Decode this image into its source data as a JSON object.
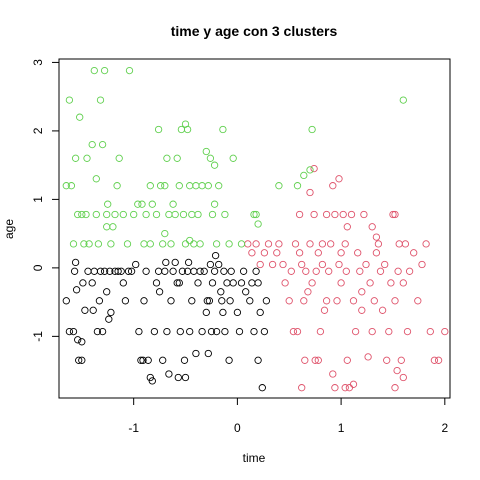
{
  "chart_data": {
    "type": "scatter",
    "title": "time  y  age con  3  clusters",
    "xlabel": "time",
    "ylabel": "age",
    "xlim": [
      -1.72,
      2.05
    ],
    "ylim": [
      -1.9,
      3.05
    ],
    "xticks": [
      -1,
      0,
      1,
      2
    ],
    "yticks": [
      -1,
      0,
      1,
      2,
      3
    ],
    "grid": false,
    "legend": "none",
    "series": [
      {
        "color": "#000000",
        "points": [
          [
            -1.65,
            -0.48
          ],
          [
            -1.62,
            -0.93
          ],
          [
            -1.58,
            -0.93
          ],
          [
            -1.57,
            -0.05
          ],
          [
            -1.56,
            0.08
          ],
          [
            -1.55,
            -0.32
          ],
          [
            -1.54,
            -1.05
          ],
          [
            -1.53,
            -1.35
          ],
          [
            -1.5,
            -1.35
          ],
          [
            -1.5,
            -1.08
          ],
          [
            -1.47,
            -0.62
          ],
          [
            -1.44,
            -0.05
          ],
          [
            -1.4,
            -0.22
          ],
          [
            -1.38,
            -0.05
          ],
          [
            -1.35,
            -0.93
          ],
          [
            -1.33,
            -0.48
          ],
          [
            -1.32,
            -0.05
          ],
          [
            -1.3,
            -0.93
          ],
          [
            -1.28,
            -0.05
          ],
          [
            -1.26,
            -0.35
          ],
          [
            -1.24,
            -0.75
          ],
          [
            -1.22,
            -0.65
          ],
          [
            -1.18,
            -0.05
          ],
          [
            -1.15,
            -0.05
          ],
          [
            -1.12,
            -0.05
          ],
          [
            -1.1,
            -0.22
          ],
          [
            -1.08,
            -0.48
          ],
          [
            -1.05,
            -0.05
          ],
          [
            -1.02,
            -0.05
          ],
          [
            -0.98,
            0.05
          ],
          [
            -0.95,
            -0.93
          ],
          [
            -0.93,
            -1.35
          ],
          [
            -0.91,
            -1.35
          ],
          [
            -0.9,
            -0.48
          ],
          [
            -0.88,
            -0.05
          ],
          [
            -0.86,
            -1.35
          ],
          [
            -0.84,
            -1.6
          ],
          [
            -0.82,
            -1.65
          ],
          [
            -0.8,
            -0.93
          ],
          [
            -0.78,
            -0.22
          ],
          [
            -0.76,
            -0.05
          ],
          [
            -0.75,
            -0.35
          ],
          [
            -0.72,
            -1.35
          ],
          [
            -0.7,
            -0.05
          ],
          [
            -0.68,
            -0.93
          ],
          [
            -0.66,
            -1.55
          ],
          [
            -0.64,
            -0.48
          ],
          [
            -0.62,
            -0.05
          ],
          [
            -0.6,
            0.08
          ],
          [
            -0.58,
            -0.22
          ],
          [
            -0.57,
            -1.6
          ],
          [
            -0.55,
            -0.93
          ],
          [
            -0.53,
            -0.05
          ],
          [
            -0.51,
            -1.35
          ],
          [
            -0.5,
            -1.6
          ],
          [
            -0.48,
            -0.05
          ],
          [
            -0.46,
            -0.93
          ],
          [
            -0.44,
            -0.48
          ],
          [
            -0.42,
            -0.05
          ],
          [
            -0.4,
            -1.25
          ],
          [
            -0.38,
            -0.22
          ],
          [
            -0.36,
            -0.05
          ],
          [
            -0.34,
            -0.93
          ],
          [
            -0.32,
            -0.05
          ],
          [
            -0.3,
            -0.65
          ],
          [
            -0.28,
            -1.25
          ],
          [
            -0.27,
            -0.48
          ],
          [
            -0.26,
            0.05
          ],
          [
            -0.24,
            -0.22
          ],
          [
            -0.22,
            -0.05
          ],
          [
            -0.2,
            -0.93
          ],
          [
            -0.18,
            0.05
          ],
          [
            -0.16,
            -0.35
          ],
          [
            -0.15,
            -0.48
          ],
          [
            -0.13,
            -0.05
          ],
          [
            -0.12,
            -0.93
          ],
          [
            -0.1,
            -0.22
          ],
          [
            -0.08,
            -1.35
          ],
          [
            -0.06,
            -0.05
          ],
          [
            -0.04,
            -0.22
          ],
          [
            0.0,
            -0.65
          ],
          [
            0.02,
            -0.93
          ],
          [
            0.04,
            -0.22
          ],
          [
            0.06,
            -0.05
          ],
          [
            0.08,
            -0.35
          ],
          [
            0.12,
            -0.48
          ],
          [
            0.16,
            -0.93
          ],
          [
            0.18,
            -0.05
          ],
          [
            0.2,
            -1.35
          ],
          [
            0.2,
            -0.22
          ],
          [
            0.22,
            -0.65
          ],
          [
            0.24,
            -1.75
          ],
          [
            0.26,
            -0.93
          ],
          [
            0.28,
            -0.48
          ],
          [
            -1.49,
            -0.22
          ],
          [
            -1.39,
            -0.62
          ],
          [
            -1.23,
            -0.05
          ],
          [
            -0.69,
            0.08
          ],
          [
            -0.56,
            -0.22
          ],
          [
            -0.47,
            0.08
          ],
          [
            -0.29,
            -0.48
          ],
          [
            -0.25,
            -0.93
          ],
          [
            -0.21,
            0.18
          ],
          [
            -0.14,
            -0.65
          ],
          [
            -0.07,
            -0.48
          ],
          [
            0.14,
            -0.22
          ]
        ]
      },
      {
        "color": "#DF536B",
        "points": [
          [
            0.1,
            0.35
          ],
          [
            0.14,
            0.22
          ],
          [
            0.18,
            0.35
          ],
          [
            0.22,
            0.05
          ],
          [
            0.26,
            0.22
          ],
          [
            0.3,
            0.35
          ],
          [
            0.34,
            0.05
          ],
          [
            0.38,
            0.22
          ],
          [
            0.4,
            0.35
          ],
          [
            0.44,
            0.05
          ],
          [
            0.46,
            -0.22
          ],
          [
            0.5,
            -0.48
          ],
          [
            0.52,
            -0.05
          ],
          [
            0.54,
            -0.93
          ],
          [
            0.56,
            0.35
          ],
          [
            0.58,
            -0.93
          ],
          [
            0.6,
            0.22
          ],
          [
            0.62,
            0.05
          ],
          [
            0.64,
            -0.48
          ],
          [
            0.65,
            -1.35
          ],
          [
            0.66,
            -0.05
          ],
          [
            0.68,
            -0.35
          ],
          [
            0.7,
            0.35
          ],
          [
            0.72,
            -0.22
          ],
          [
            0.74,
            0.78
          ],
          [
            0.75,
            -1.35
          ],
          [
            0.76,
            -0.05
          ],
          [
            0.78,
            0.22
          ],
          [
            0.8,
            -0.93
          ],
          [
            0.82,
            0.35
          ],
          [
            0.84,
            -0.62
          ],
          [
            0.86,
            -0.48
          ],
          [
            0.88,
            -0.05
          ],
          [
            0.9,
            0.35
          ],
          [
            0.92,
            -1.55
          ],
          [
            0.94,
            0.78
          ],
          [
            0.96,
            -0.48
          ],
          [
            0.98,
            0.05
          ],
          [
            1.0,
            -0.22
          ],
          [
            1.02,
            0.78
          ],
          [
            1.04,
            0.35
          ],
          [
            1.05,
            -0.05
          ],
          [
            1.06,
            -1.35
          ],
          [
            1.08,
            -1.75
          ],
          [
            1.1,
            0.78
          ],
          [
            1.12,
            -0.48
          ],
          [
            1.14,
            -0.93
          ],
          [
            1.16,
            0.22
          ],
          [
            1.18,
            -0.05
          ],
          [
            1.2,
            -0.35
          ],
          [
            1.22,
            0.78
          ],
          [
            1.24,
            0.05
          ],
          [
            1.28,
            -0.22
          ],
          [
            1.3,
            -0.93
          ],
          [
            1.32,
            -0.48
          ],
          [
            1.34,
            0.22
          ],
          [
            1.36,
            0.35
          ],
          [
            1.38,
            -0.05
          ],
          [
            1.4,
            -0.62
          ],
          [
            1.42,
            0.05
          ],
          [
            1.44,
            -1.35
          ],
          [
            1.46,
            -0.93
          ],
          [
            1.48,
            -0.22
          ],
          [
            1.5,
            0.78
          ],
          [
            1.52,
            -0.48
          ],
          [
            1.54,
            -1.5
          ],
          [
            1.55,
            -0.05
          ],
          [
            1.56,
            0.35
          ],
          [
            1.58,
            -1.35
          ],
          [
            1.6,
            -0.22
          ],
          [
            1.62,
            0.35
          ],
          [
            1.64,
            -0.93
          ],
          [
            1.66,
            -0.05
          ],
          [
            1.7,
            0.22
          ],
          [
            1.74,
            -0.48
          ],
          [
            1.78,
            0.05
          ],
          [
            1.82,
            0.35
          ],
          [
            1.86,
            -0.93
          ],
          [
            1.9,
            -1.35
          ],
          [
            1.94,
            -1.35
          ],
          [
            2.0,
            -0.93
          ],
          [
            0.94,
            -1.75
          ],
          [
            1.04,
            -1.75
          ],
          [
            1.12,
            -1.7
          ],
          [
            1.26,
            -1.3
          ],
          [
            0.62,
            -1.75
          ],
          [
            0.78,
            -1.35
          ],
          [
            1.6,
            -1.6
          ],
          [
            1.52,
            -1.75
          ],
          [
            0.7,
            1.1
          ],
          [
            0.74,
            1.45
          ],
          [
            0.92,
            1.2
          ],
          [
            0.98,
            1.3
          ],
          [
            1.06,
            0.6
          ],
          [
            1.3,
            0.6
          ],
          [
            1.34,
            0.45
          ],
          [
            1.52,
            0.78
          ],
          [
            0.86,
            0.78
          ],
          [
            0.6,
            0.78
          ],
          [
            0.82,
            0.05
          ],
          [
            1.0,
            0.22
          ],
          [
            1.2,
            -0.62
          ]
        ]
      },
      {
        "color": "#61D04F",
        "points": [
          [
            -1.65,
            1.2
          ],
          [
            -1.62,
            2.45
          ],
          [
            -1.6,
            1.2
          ],
          [
            -1.58,
            0.35
          ],
          [
            -1.56,
            1.6
          ],
          [
            -1.54,
            0.78
          ],
          [
            -1.52,
            2.2
          ],
          [
            -1.5,
            0.78
          ],
          [
            -1.48,
            0.35
          ],
          [
            -1.45,
            1.6
          ],
          [
            -1.43,
            0.35
          ],
          [
            -1.4,
            1.8
          ],
          [
            -1.38,
            2.88
          ],
          [
            -1.36,
            0.78
          ],
          [
            -1.34,
            0.35
          ],
          [
            -1.32,
            2.45
          ],
          [
            -1.3,
            1.8
          ],
          [
            -1.28,
            2.88
          ],
          [
            -1.26,
            0.78
          ],
          [
            -1.25,
            0.93
          ],
          [
            -1.22,
            0.35
          ],
          [
            -1.18,
            0.78
          ],
          [
            -1.16,
            1.2
          ],
          [
            -1.14,
            1.6
          ],
          [
            -1.1,
            0.78
          ],
          [
            -1.06,
            0.35
          ],
          [
            -1.04,
            2.88
          ],
          [
            -1.0,
            0.78
          ],
          [
            -0.96,
            0.93
          ],
          [
            -0.92,
            0.93
          ],
          [
            -0.9,
            0.35
          ],
          [
            -0.88,
            0.78
          ],
          [
            -0.84,
            0.35
          ],
          [
            -0.82,
            0.93
          ],
          [
            -0.78,
            0.78
          ],
          [
            -0.76,
            2.02
          ],
          [
            -0.74,
            1.2
          ],
          [
            -0.72,
            0.35
          ],
          [
            -0.7,
            1.2
          ],
          [
            -0.68,
            1.6
          ],
          [
            -0.66,
            0.78
          ],
          [
            -0.64,
            0.35
          ],
          [
            -0.62,
            0.93
          ],
          [
            -0.6,
            0.78
          ],
          [
            -0.58,
            1.6
          ],
          [
            -0.56,
            1.2
          ],
          [
            -0.54,
            2.02
          ],
          [
            -0.52,
            0.78
          ],
          [
            -0.5,
            0.35
          ],
          [
            -0.48,
            2.02
          ],
          [
            -0.46,
            1.2
          ],
          [
            -0.44,
            0.78
          ],
          [
            -0.42,
            0.35
          ],
          [
            -0.4,
            1.2
          ],
          [
            -0.38,
            0.78
          ],
          [
            -0.36,
            0.35
          ],
          [
            -0.34,
            1.2
          ],
          [
            -0.3,
            1.7
          ],
          [
            -0.28,
            1.2
          ],
          [
            -0.26,
            1.6
          ],
          [
            -0.24,
            0.78
          ],
          [
            -0.22,
            0.93
          ],
          [
            -0.2,
            0.35
          ],
          [
            -0.18,
            1.2
          ],
          [
            -0.14,
            2.02
          ],
          [
            -0.12,
            0.78
          ],
          [
            -0.08,
            0.35
          ],
          [
            -0.04,
            1.6
          ],
          [
            0.04,
            0.35
          ],
          [
            0.16,
            0.78
          ],
          [
            0.18,
            0.78
          ],
          [
            0.2,
            0.64
          ],
          [
            0.4,
            1.2
          ],
          [
            0.58,
            1.2
          ],
          [
            0.64,
            1.35
          ],
          [
            0.7,
            1.43
          ],
          [
            0.72,
            2.02
          ],
          [
            1.6,
            2.45
          ],
          [
            -1.36,
            1.3
          ],
          [
            -1.26,
            0.6
          ],
          [
            -0.7,
            0.5
          ],
          [
            -0.5,
            2.1
          ],
          [
            -0.46,
            0.4
          ],
          [
            -0.22,
            1.5
          ],
          [
            -1.46,
            0.78
          ],
          [
            -1.2,
            0.6
          ],
          [
            -0.84,
            1.2
          ]
        ]
      }
    ]
  }
}
